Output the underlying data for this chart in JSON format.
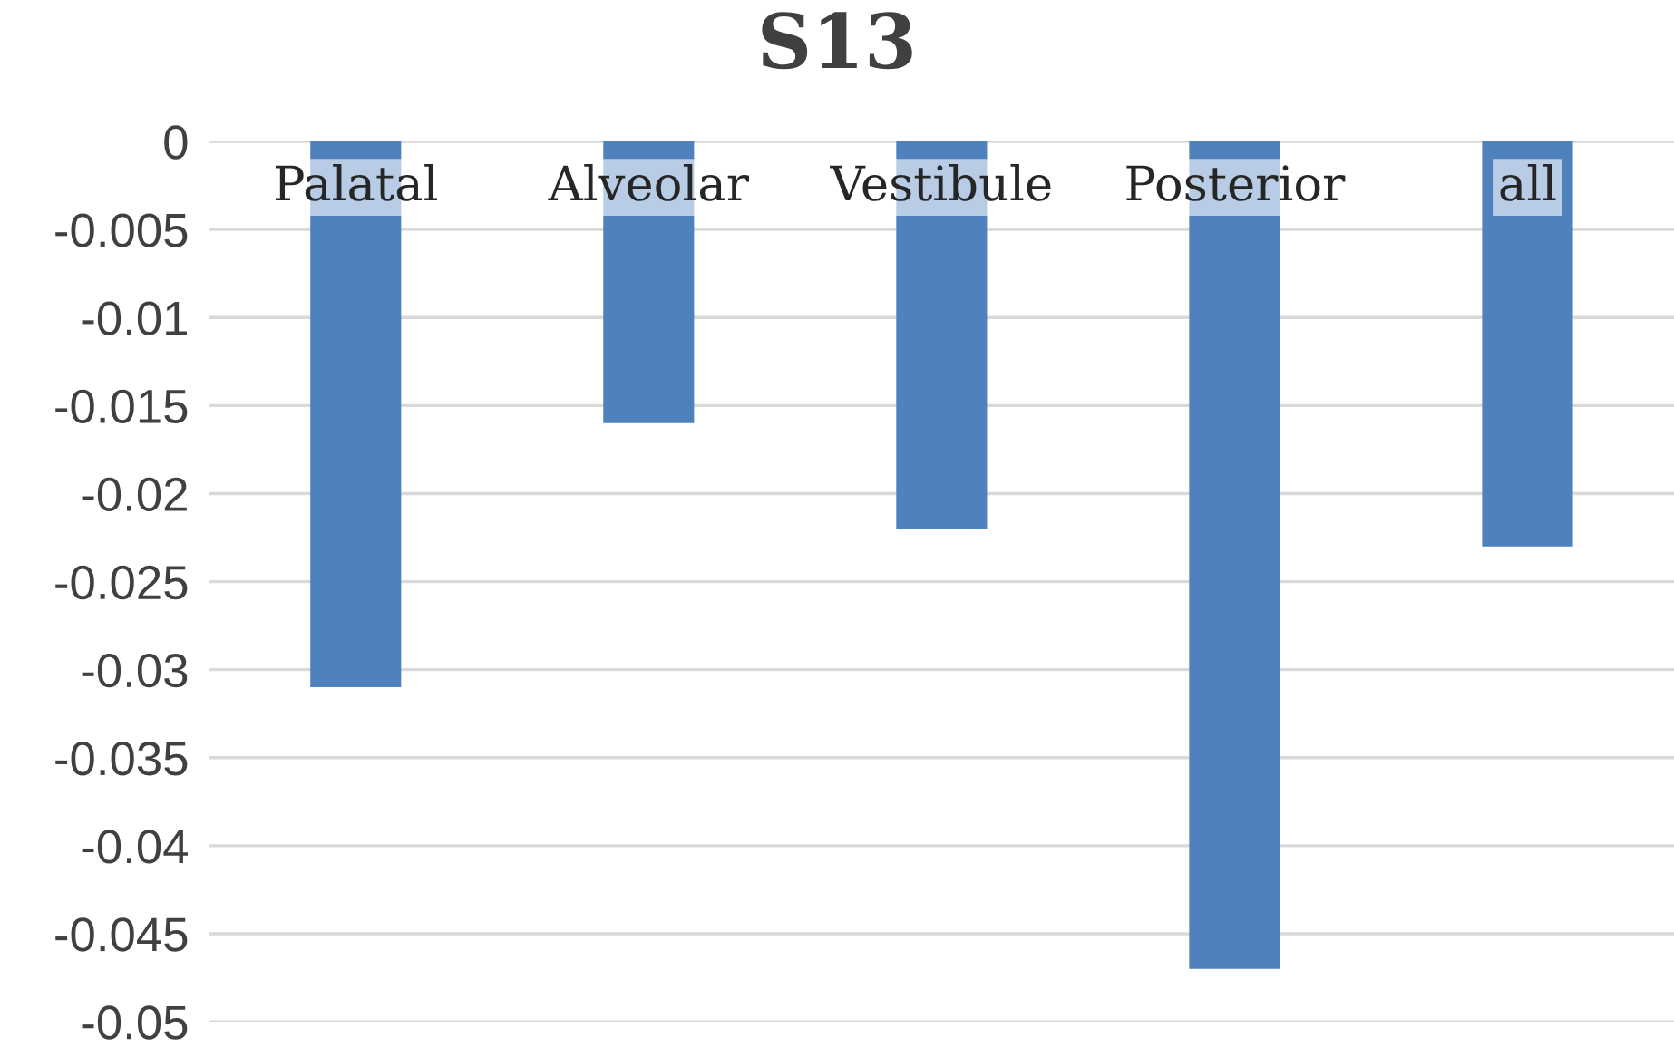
{
  "chart_data": {
    "type": "bar",
    "title": "S13",
    "categories": [
      "Palatal",
      "Alveolar",
      "Vestibule",
      "Posterior",
      "all"
    ],
    "values": [
      -0.031,
      -0.016,
      -0.022,
      -0.047,
      -0.023
    ],
    "color": "#4f81bd",
    "ylim": [
      -0.05,
      0
    ],
    "yticks": [
      0,
      -0.005,
      -0.01,
      -0.015,
      -0.02,
      -0.025,
      -0.03,
      -0.035,
      -0.04,
      -0.045,
      -0.05
    ],
    "grid": "y"
  }
}
